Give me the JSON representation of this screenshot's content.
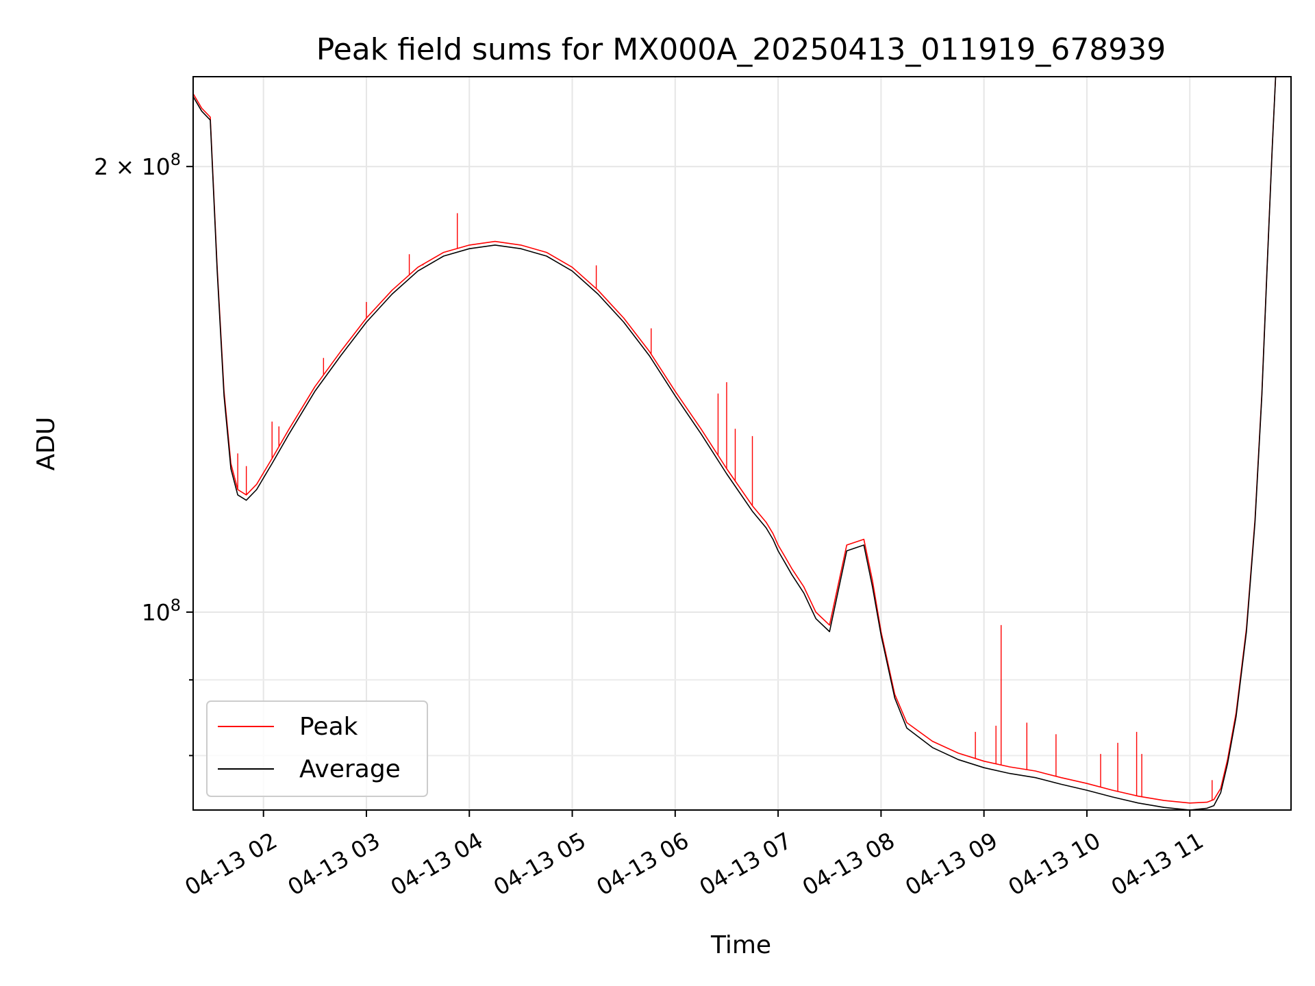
{
  "chart_data": {
    "type": "line",
    "title": "Peak field sums for MX000A_20250413_011919_678939",
    "xlabel": "Time",
    "ylabel": "ADU",
    "y_scale": "log",
    "grid": true,
    "legend_position": "lower-left",
    "xlim": [
      "2025-04-13 01:19",
      "2025-04-13 11:59"
    ],
    "ylim": [
      73500000,
      230000000
    ],
    "x_ticks": [
      {
        "value": "2025-04-13 02:00",
        "label": "04-13 02"
      },
      {
        "value": "2025-04-13 03:00",
        "label": "04-13 03"
      },
      {
        "value": "2025-04-13 04:00",
        "label": "04-13 04"
      },
      {
        "value": "2025-04-13 05:00",
        "label": "04-13 05"
      },
      {
        "value": "2025-04-13 06:00",
        "label": "04-13 06"
      },
      {
        "value": "2025-04-13 07:00",
        "label": "04-13 07"
      },
      {
        "value": "2025-04-13 08:00",
        "label": "04-13 08"
      },
      {
        "value": "2025-04-13 09:00",
        "label": "04-13 09"
      },
      {
        "value": "2025-04-13 10:00",
        "label": "04-13 10"
      },
      {
        "value": "2025-04-13 11:00",
        "label": "04-13 11"
      }
    ],
    "y_major_ticks": [
      {
        "value": 100000000,
        "label_base": "10",
        "label_exp": "8"
      },
      {
        "value": 200000000,
        "label_base": "2 × 10",
        "label_exp": "8"
      }
    ],
    "y_minor_ticks": [
      80000000,
      90000000
    ],
    "series": [
      {
        "name": "Average",
        "color": "#000000",
        "x": [
          "2025-04-13 01:19",
          "2025-04-13 01:24",
          "2025-04-13 01:29",
          "2025-04-13 01:33",
          "2025-04-13 01:37",
          "2025-04-13 01:41",
          "2025-04-13 01:45",
          "2025-04-13 01:50",
          "2025-04-13 01:56",
          "2025-04-13 02:05",
          "2025-04-13 02:15",
          "2025-04-13 02:30",
          "2025-04-13 02:45",
          "2025-04-13 03:00",
          "2025-04-13 03:15",
          "2025-04-13 03:30",
          "2025-04-13 03:45",
          "2025-04-13 04:00",
          "2025-04-13 04:15",
          "2025-04-13 04:30",
          "2025-04-13 04:45",
          "2025-04-13 05:00",
          "2025-04-13 05:15",
          "2025-04-13 05:30",
          "2025-04-13 05:45",
          "2025-04-13 06:00",
          "2025-04-13 06:15",
          "2025-04-13 06:30",
          "2025-04-13 06:45",
          "2025-04-13 06:53",
          "2025-04-13 06:57",
          "2025-04-13 07:00",
          "2025-04-13 07:04",
          "2025-04-13 07:08",
          "2025-04-13 07:15",
          "2025-04-13 07:22",
          "2025-04-13 07:30",
          "2025-04-13 07:40",
          "2025-04-13 07:50",
          "2025-04-13 07:55",
          "2025-04-13 08:00",
          "2025-04-13 08:08",
          "2025-04-13 08:15",
          "2025-04-13 08:30",
          "2025-04-13 08:45",
          "2025-04-13 09:00",
          "2025-04-13 09:15",
          "2025-04-13 09:30",
          "2025-04-13 09:45",
          "2025-04-13 10:00",
          "2025-04-13 10:15",
          "2025-04-13 10:30",
          "2025-04-13 10:45",
          "2025-04-13 11:00",
          "2025-04-13 11:10",
          "2025-04-13 11:14",
          "2025-04-13 11:18",
          "2025-04-13 11:22",
          "2025-04-13 11:27",
          "2025-04-13 11:33",
          "2025-04-13 11:38",
          "2025-04-13 11:42",
          "2025-04-13 11:45",
          "2025-04-13 11:48",
          "2025-04-13 11:50",
          "2025-04-13 11:59"
        ],
        "y": [
          223000000,
          218000000,
          215000000,
          170000000,
          140000000,
          125000000,
          120000000,
          119000000,
          121000000,
          126000000,
          132000000,
          141000000,
          149000000,
          157000000,
          164000000,
          170000000,
          174000000,
          176000000,
          177000000,
          176000000,
          174000000,
          170000000,
          164000000,
          157000000,
          149000000,
          140000000,
          132000000,
          124000000,
          117000000,
          114000000,
          112000000,
          110000000,
          108000000,
          106000000,
          103000000,
          99000000,
          97000000,
          110000000,
          111000000,
          104000000,
          96500000,
          87500000,
          83500000,
          81000000,
          79500000,
          78500000,
          77800000,
          77300000,
          76500000,
          75800000,
          75000000,
          74300000,
          73800000,
          73500000,
          73700000,
          74000000,
          75500000,
          79000000,
          85000000,
          97000000,
          115000000,
          140000000,
          170000000,
          205000000,
          230000000,
          230000000
        ]
      },
      {
        "name": "Peak",
        "color": "#ff0000",
        "x": [
          "2025-04-13 01:19",
          "2025-04-13 01:24",
          "2025-04-13 01:29",
          "2025-04-13 01:33",
          "2025-04-13 01:37",
          "2025-04-13 01:41",
          "2025-04-13 01:45",
          "2025-04-13 01:50",
          "2025-04-13 01:56",
          "2025-04-13 02:05",
          "2025-04-13 02:15",
          "2025-04-13 02:30",
          "2025-04-13 02:45",
          "2025-04-13 03:00",
          "2025-04-13 03:15",
          "2025-04-13 03:30",
          "2025-04-13 03:45",
          "2025-04-13 04:00",
          "2025-04-13 04:15",
          "2025-04-13 04:30",
          "2025-04-13 04:45",
          "2025-04-13 05:00",
          "2025-04-13 05:15",
          "2025-04-13 05:30",
          "2025-04-13 05:45",
          "2025-04-13 06:00",
          "2025-04-13 06:15",
          "2025-04-13 06:30",
          "2025-04-13 06:45",
          "2025-04-13 06:53",
          "2025-04-13 06:57",
          "2025-04-13 07:00",
          "2025-04-13 07:04",
          "2025-04-13 07:08",
          "2025-04-13 07:15",
          "2025-04-13 07:22",
          "2025-04-13 07:30",
          "2025-04-13 07:40",
          "2025-04-13 07:50",
          "2025-04-13 07:55",
          "2025-04-13 08:00",
          "2025-04-13 08:08",
          "2025-04-13 08:15",
          "2025-04-13 08:30",
          "2025-04-13 08:45",
          "2025-04-13 09:00",
          "2025-04-13 09:15",
          "2025-04-13 09:30",
          "2025-04-13 09:45",
          "2025-04-13 10:00",
          "2025-04-13 10:15",
          "2025-04-13 10:30",
          "2025-04-13 10:45",
          "2025-04-13 11:00",
          "2025-04-13 11:10",
          "2025-04-13 11:14",
          "2025-04-13 11:18",
          "2025-04-13 11:22",
          "2025-04-13 11:27",
          "2025-04-13 11:33",
          "2025-04-13 11:38",
          "2025-04-13 11:42",
          "2025-04-13 11:45",
          "2025-04-13 11:48",
          "2025-04-13 11:50",
          "2025-04-13 11:59"
        ],
        "y": [
          224000000,
          219000000,
          216000000,
          171000000,
          141000000,
          126000000,
          121000000,
          120000000,
          122000000,
          127000000,
          133000000,
          142000000,
          150000000,
          158000000,
          165000000,
          171000000,
          175000000,
          177000000,
          178000000,
          177000000,
          175000000,
          171000000,
          165000000,
          158000000,
          150000000,
          141000000,
          133000000,
          125000000,
          118000000,
          115000000,
          113000000,
          111000000,
          109000000,
          107000000,
          104000000,
          100000000,
          98000000,
          111000000,
          112000000,
          105000000,
          97000000,
          88000000,
          84200000,
          81800000,
          80300000,
          79300000,
          78600000,
          78100000,
          77300000,
          76600000,
          75800000,
          75100000,
          74600000,
          74300000,
          74400000,
          74700000,
          76000000,
          79500000,
          85500000,
          97500000,
          115500000,
          140500000,
          170500000,
          205500000,
          230000000,
          230000000
        ]
      }
    ],
    "peak_spikes": [
      {
        "x": "2025-04-13 01:45",
        "y": 128000000
      },
      {
        "x": "2025-04-13 01:50",
        "y": 125500000
      },
      {
        "x": "2025-04-13 02:05",
        "y": 134500000
      },
      {
        "x": "2025-04-13 02:09",
        "y": 133500000
      },
      {
        "x": "2025-04-13 02:35",
        "y": 148500000
      },
      {
        "x": "2025-04-13 03:00",
        "y": 162000000
      },
      {
        "x": "2025-04-13 03:25",
        "y": 174500000
      },
      {
        "x": "2025-04-13 03:33",
        "y": 171500000
      },
      {
        "x": "2025-04-13 03:53",
        "y": 186000000
      },
      {
        "x": "2025-04-13 05:14",
        "y": 171500000
      },
      {
        "x": "2025-04-13 05:46",
        "y": 155500000
      },
      {
        "x": "2025-04-13 06:25",
        "y": 140500000
      },
      {
        "x": "2025-04-13 06:30",
        "y": 143000000
      },
      {
        "x": "2025-04-13 06:35",
        "y": 133000000
      },
      {
        "x": "2025-04-13 06:45",
        "y": 131500000
      },
      {
        "x": "2025-04-13 08:55",
        "y": 83000000
      },
      {
        "x": "2025-04-13 09:07",
        "y": 83800000
      },
      {
        "x": "2025-04-13 09:10",
        "y": 98000000
      },
      {
        "x": "2025-04-13 09:25",
        "y": 84200000
      },
      {
        "x": "2025-04-13 09:42",
        "y": 82700000
      },
      {
        "x": "2025-04-13 10:08",
        "y": 80200000
      },
      {
        "x": "2025-04-13 10:18",
        "y": 81600000
      },
      {
        "x": "2025-04-13 10:29",
        "y": 83000000
      },
      {
        "x": "2025-04-13 10:32",
        "y": 80200000
      },
      {
        "x": "2025-04-13 11:13",
        "y": 77000000
      }
    ]
  }
}
